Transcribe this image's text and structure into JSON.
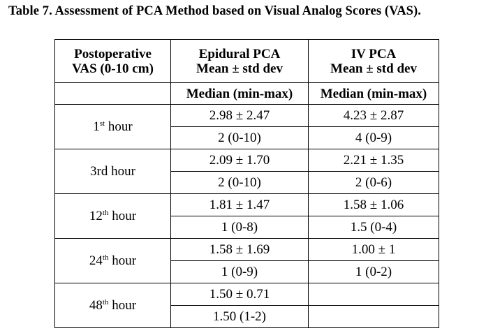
{
  "caption": "Table 7. Assessment of PCA Method based on Visual Analog Scores (VAS).",
  "header": {
    "col1_line1": "Postoperative",
    "col1_line2": "VAS (0-10 cm)",
    "col2_line1": "Epidural PCA",
    "col2_line2": "Mean ± std dev",
    "col3_line1": "IV PCA",
    "col3_line2": "Mean ± std dev",
    "col1_sub": "",
    "col2_sub": "Median (min-max)",
    "col3_sub": "Median (min-max)"
  },
  "rows": [
    {
      "time": "1",
      "sup": "st",
      "suffix": " hour",
      "epi_mean": "2.98 ± 2.47",
      "epi_median": "2 (0-10)",
      "iv_mean": "4.23 ± 2.87",
      "iv_median": "4 (0-9)"
    },
    {
      "time": "3rd",
      "sup": "",
      "suffix": " hour",
      "epi_mean": "2.09 ± 1.70",
      "epi_median": "2 (0-10)",
      "iv_mean": "2.21 ± 1.35",
      "iv_median": "2 (0-6)"
    },
    {
      "time": "12",
      "sup": "th",
      "suffix": " hour",
      "epi_mean": "1.81 ± 1.47",
      "epi_median": "1 (0-8)",
      "iv_mean": "1.58 ± 1.06",
      "iv_median": "1.5 (0-4)"
    },
    {
      "time": "24",
      "sup": "th",
      "suffix": " hour",
      "epi_mean": "1.58 ± 1.69",
      "epi_median": "1 (0-9)",
      "iv_mean": "1.00 ± 1",
      "iv_median": "1 (0-2)"
    },
    {
      "time": "48",
      "sup": "th",
      "suffix": " hour",
      "epi_mean": "1.50 ± 0.71",
      "epi_median": "1.50 (1-2)",
      "iv_mean": "",
      "iv_median": ""
    }
  ]
}
